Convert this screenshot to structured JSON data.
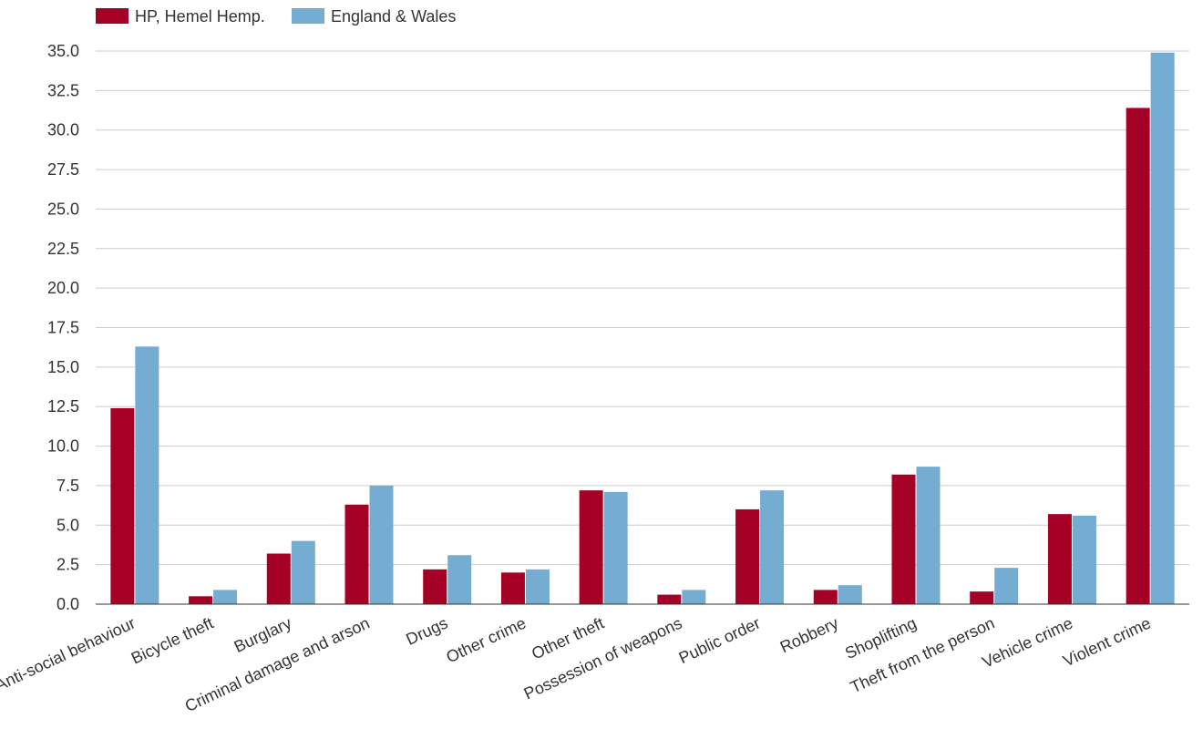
{
  "chart_data": {
    "type": "bar",
    "categories": [
      "Anti-social behaviour",
      "Bicycle theft",
      "Burglary",
      "Criminal damage and arson",
      "Drugs",
      "Other crime",
      "Other theft",
      "Possession of weapons",
      "Public order",
      "Robbery",
      "Shoplifting",
      "Theft from the person",
      "Vehicle crime",
      "Violent crime"
    ],
    "series": [
      {
        "name": "HP, Hemel Hemp.",
        "color": "#a50026",
        "values": [
          12.4,
          0.5,
          3.2,
          6.3,
          2.2,
          2.0,
          7.2,
          0.6,
          6.0,
          0.9,
          8.2,
          0.8,
          5.7,
          31.4
        ]
      },
      {
        "name": "England & Wales",
        "color": "#74add1",
        "values": [
          16.3,
          0.9,
          4.0,
          7.5,
          3.1,
          2.2,
          7.1,
          0.9,
          7.2,
          1.2,
          8.7,
          2.3,
          5.6,
          34.9
        ]
      }
    ],
    "y_ticks": [
      "0.0",
      "2.5",
      "5.0",
      "7.5",
      "10.0",
      "12.5",
      "15.0",
      "17.5",
      "20.0",
      "22.5",
      "25.0",
      "27.5",
      "30.0",
      "32.5",
      "35.0"
    ],
    "ylim": [
      0,
      35
    ],
    "grid": true,
    "legend_position": "top-left",
    "title": "",
    "xlabel": "",
    "ylabel": ""
  }
}
